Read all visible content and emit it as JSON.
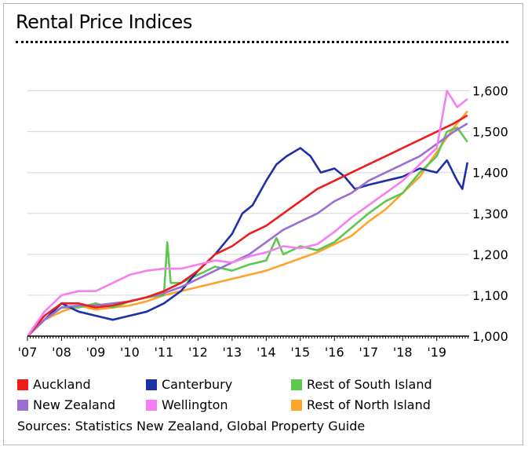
{
  "title": "Rental Price Indices",
  "sources": "Sources:  Statistics New Zealand, Global Property Guide",
  "chart_data": {
    "type": "line",
    "title": "Rental Price Indices",
    "xlabel": "",
    "ylabel": "",
    "xlim": [
      2007.0,
      2019.95
    ],
    "ylim": [
      1000,
      1630
    ],
    "y_ticks": [
      1000,
      1100,
      1200,
      1300,
      1400,
      1500,
      1600
    ],
    "y_tick_labels": [
      "1,000",
      "1,100",
      "1,200",
      "1,300",
      "1,400",
      "1,500",
      "1,600"
    ],
    "x_ticks": [
      2007,
      2008,
      2009,
      2010,
      2011,
      2012,
      2013,
      2014,
      2015,
      2016,
      2017,
      2018,
      2019
    ],
    "x_tick_labels": [
      "'07",
      "'08",
      "'09",
      "'10",
      "'11",
      "'12",
      "'13",
      "'14",
      "'15",
      "'16",
      "'17",
      "'18",
      "'19"
    ],
    "grid": true,
    "series": [
      {
        "name": "Rest of North Island",
        "color": "#ffa32b",
        "x": [
          2007,
          2007.5,
          2008,
          2008.5,
          2009,
          2009.5,
          2010,
          2010.5,
          2011,
          2011.5,
          2012,
          2012.5,
          2013,
          2013.5,
          2014,
          2014.5,
          2015,
          2015.5,
          2016,
          2016.5,
          2017,
          2017.5,
          2018,
          2018.5,
          2019,
          2019.5,
          2019.9
        ],
        "y": [
          1000,
          1040,
          1060,
          1075,
          1065,
          1070,
          1075,
          1085,
          1100,
          1110,
          1120,
          1130,
          1140,
          1150,
          1160,
          1175,
          1190,
          1205,
          1225,
          1245,
          1280,
          1310,
          1350,
          1390,
          1450,
          1510,
          1550
        ]
      },
      {
        "name": "Rest of South Island",
        "color": "#5ec750",
        "x": [
          2007,
          2007.5,
          2008,
          2008.5,
          2009,
          2009.5,
          2010,
          2010.5,
          2011,
          2011.1,
          2011.2,
          2011.5,
          2012,
          2012.5,
          2013,
          2013.5,
          2014,
          2014.3,
          2014.5,
          2015,
          2015.5,
          2016,
          2016.5,
          2017,
          2017.5,
          2018,
          2018.5,
          2019,
          2019.3,
          2019.6,
          2019.9
        ],
        "y": [
          1000,
          1040,
          1070,
          1070,
          1080,
          1070,
          1085,
          1095,
          1100,
          1230,
          1130,
          1130,
          1150,
          1170,
          1160,
          1175,
          1185,
          1240,
          1200,
          1220,
          1210,
          1230,
          1265,
          1300,
          1330,
          1350,
          1400,
          1440,
          1500,
          1510,
          1475
        ]
      },
      {
        "name": "Canterbury",
        "color": "#1e2fa8",
        "x": [
          2007,
          2007.5,
          2008,
          2008.5,
          2009,
          2009.5,
          2010,
          2010.5,
          2011,
          2011.5,
          2012,
          2012.5,
          2013,
          2013.3,
          2013.6,
          2014,
          2014.3,
          2014.6,
          2015,
          2015.3,
          2015.6,
          2016,
          2016.3,
          2016.6,
          2017,
          2017.5,
          2018,
          2018.5,
          2019,
          2019.3,
          2019.6,
          2019.75,
          2019.9
        ],
        "y": [
          1000,
          1040,
          1080,
          1060,
          1050,
          1040,
          1050,
          1060,
          1080,
          1110,
          1160,
          1200,
          1250,
          1300,
          1320,
          1380,
          1420,
          1440,
          1460,
          1440,
          1400,
          1410,
          1390,
          1360,
          1370,
          1380,
          1390,
          1410,
          1400,
          1430,
          1380,
          1360,
          1425
        ]
      },
      {
        "name": "New Zealand",
        "color": "#9a6fd1",
        "x": [
          2007,
          2007.5,
          2008,
          2008.5,
          2009,
          2009.5,
          2010,
          2010.5,
          2011,
          2011.5,
          2012,
          2012.5,
          2013,
          2013.5,
          2014,
          2014.5,
          2015,
          2015.5,
          2016,
          2016.5,
          2017,
          2017.5,
          2018,
          2018.5,
          2019,
          2019.5,
          2019.9
        ],
        "y": [
          1000,
          1040,
          1070,
          1075,
          1075,
          1080,
          1085,
          1095,
          1105,
          1120,
          1140,
          1160,
          1180,
          1200,
          1230,
          1260,
          1280,
          1300,
          1330,
          1350,
          1380,
          1400,
          1420,
          1440,
          1470,
          1500,
          1520
        ]
      },
      {
        "name": "Auckland",
        "color": "#f01b1b",
        "x": [
          2007,
          2007.5,
          2008,
          2008.5,
          2009,
          2009.5,
          2010,
          2010.5,
          2011,
          2011.5,
          2012,
          2012.5,
          2013,
          2013.5,
          2014,
          2014.5,
          2015,
          2015.5,
          2016,
          2016.5,
          2017,
          2017.5,
          2018,
          2018.5,
          2019,
          2019.5,
          2019.9
        ],
        "y": [
          1000,
          1050,
          1080,
          1080,
          1070,
          1075,
          1085,
          1095,
          1110,
          1130,
          1160,
          1200,
          1220,
          1250,
          1270,
          1300,
          1330,
          1360,
          1380,
          1400,
          1420,
          1440,
          1460,
          1480,
          1500,
          1520,
          1540
        ]
      },
      {
        "name": "Wellington",
        "color": "#f57ef3",
        "x": [
          2007,
          2007.5,
          2008,
          2008.5,
          2009,
          2009.5,
          2010,
          2010.5,
          2011,
          2011.5,
          2012,
          2012.5,
          2013,
          2013.5,
          2014,
          2014.5,
          2015,
          2015.5,
          2016,
          2016.5,
          2017,
          2017.5,
          2018,
          2018.5,
          2019,
          2019.3,
          2019.6,
          2019.9
        ],
        "y": [
          1000,
          1060,
          1100,
          1110,
          1110,
          1130,
          1150,
          1160,
          1165,
          1165,
          1175,
          1185,
          1180,
          1195,
          1205,
          1220,
          1215,
          1225,
          1255,
          1290,
          1320,
          1350,
          1380,
          1420,
          1460,
          1600,
          1560,
          1580
        ]
      }
    ]
  },
  "legend": [
    {
      "label": "Auckland",
      "color": "#f01b1b"
    },
    {
      "label": "Canterbury",
      "color": "#1e2fa8"
    },
    {
      "label": "Rest of South Island",
      "color": "#5ec750"
    },
    {
      "label": "New Zealand",
      "color": "#9a6fd1"
    },
    {
      "label": "Wellington",
      "color": "#f57ef3"
    },
    {
      "label": "Rest of North Island",
      "color": "#ffa32b"
    }
  ]
}
